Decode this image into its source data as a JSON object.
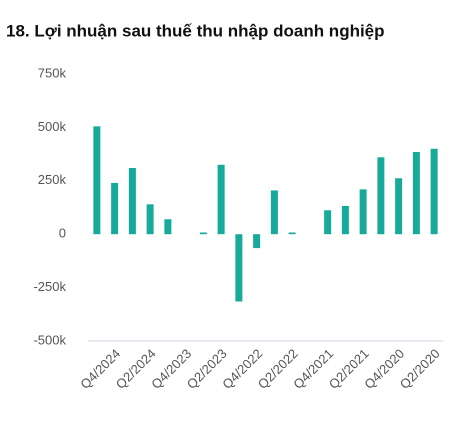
{
  "chart_data": {
    "type": "bar",
    "title": "18. Lợi nhuận sau thuế thu nhập doanh nghiệp",
    "categories": [
      null,
      "Q4/2024",
      null,
      "Q2/2024",
      null,
      "Q4/2023",
      null,
      "Q2/2023",
      null,
      "Q4/2022",
      null,
      "Q2/2022",
      null,
      "Q4/2021",
      null,
      "Q2/2021",
      null,
      "Q4/2020",
      null,
      "Q2/2020"
    ],
    "values": [
      505000,
      240000,
      310000,
      140000,
      70000,
      0,
      8000,
      325000,
      -315000,
      -65000,
      205000,
      8000,
      0,
      112000,
      132000,
      210000,
      360000,
      262000,
      385000,
      400000
    ],
    "color": "#17a99a",
    "ylim": [
      -500000,
      750000
    ],
    "yticks": [
      {
        "value": -500000,
        "label": "-500k"
      },
      {
        "value": -250000,
        "label": "-250k"
      },
      0,
      {
        "value": 250000,
        "label": "250k"
      },
      {
        "value": 500000,
        "label": "500k"
      },
      {
        "value": 750000,
        "label": "750k"
      }
    ],
    "grid": false
  }
}
